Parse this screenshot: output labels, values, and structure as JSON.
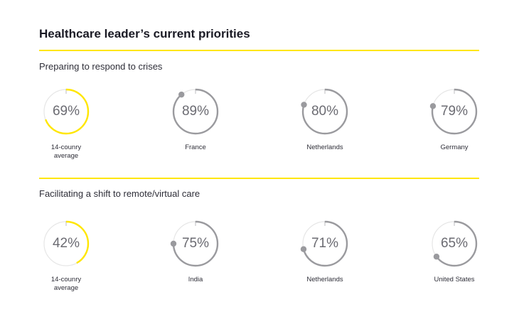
{
  "title": "Healthcare leader’s current priorities",
  "colors": {
    "accent": "#ffe600",
    "ring": "#9a9a9e",
    "track": "#e6e6e6"
  },
  "chart_data": [
    {
      "type": "donut",
      "title": "Preparing to respond to crises",
      "unit": "%",
      "categories": [
        "14-counry average",
        "France",
        "Netherlands",
        "Germany"
      ],
      "values": [
        69,
        89,
        80,
        79
      ],
      "highlight_index": 0
    },
    {
      "type": "donut",
      "title": "Facilitating a shift to remote/virtual care",
      "unit": "%",
      "categories": [
        "14-counry average",
        "India",
        "Netherlands",
        "United States"
      ],
      "values": [
        42,
        75,
        71,
        65
      ],
      "highlight_index": 0
    }
  ],
  "sections": [
    {
      "title": "Preparing to respond to crises",
      "items": [
        {
          "pct": "69%",
          "label_lines": [
            "14-counry",
            "average"
          ]
        },
        {
          "pct": "89%",
          "label_lines": [
            "France"
          ]
        },
        {
          "pct": "80%",
          "label_lines": [
            "Netherlands"
          ]
        },
        {
          "pct": "79%",
          "label_lines": [
            "Germany"
          ]
        }
      ]
    },
    {
      "title": "Facilitating a shift to remote/virtual care",
      "items": [
        {
          "pct": "42%",
          "label_lines": [
            "14-counry",
            "average"
          ]
        },
        {
          "pct": "75%",
          "label_lines": [
            "India"
          ]
        },
        {
          "pct": "71%",
          "label_lines": [
            "Netherlands"
          ]
        },
        {
          "pct": "65%",
          "label_lines": [
            "United States"
          ]
        }
      ]
    }
  ]
}
